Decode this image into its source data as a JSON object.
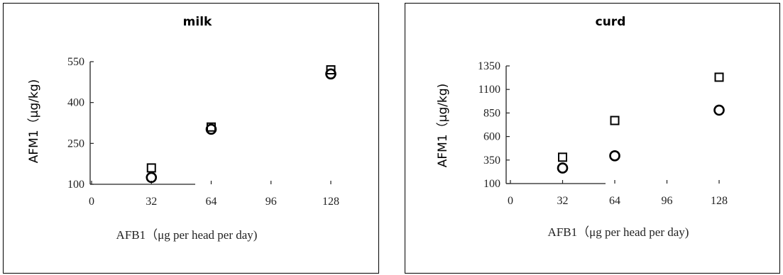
{
  "chart_data": [
    {
      "type": "scatter",
      "title": "milk",
      "xlabel": "AFB1（μg per head per day)",
      "ylabel": "AFM1（μg/kg)",
      "xlim": [
        0,
        145
      ],
      "ylim": [
        100,
        550
      ],
      "xticks": [
        0,
        32,
        64,
        96,
        128
      ],
      "yticks": [
        100,
        250,
        400,
        550
      ],
      "grid": false,
      "colors": {
        "marker": "#000000",
        "axis": "#222222"
      },
      "series": [
        {
          "marker": "square",
          "points": [
            [
              32,
              160
            ],
            [
              64,
              310
            ],
            [
              128,
              520
            ]
          ]
        },
        {
          "marker": "circle",
          "points": [
            [
              32,
              125
            ],
            [
              64,
              302
            ],
            [
              128,
              505
            ]
          ]
        }
      ]
    },
    {
      "type": "scatter",
      "title": "curd",
      "xlabel": "AFB1（μg per head per day)",
      "ylabel": "AFM1（μg/kg)",
      "xlim": [
        0,
        145
      ],
      "ylim": [
        100,
        1350
      ],
      "xticks": [
        0,
        32,
        64,
        96,
        128
      ],
      "yticks": [
        100,
        350,
        600,
        850,
        1100,
        1350
      ],
      "grid": false,
      "colors": {
        "marker": "#000000",
        "axis": "#222222"
      },
      "series": [
        {
          "marker": "square",
          "points": [
            [
              32,
              380
            ],
            [
              64,
              770
            ],
            [
              128,
              1230
            ]
          ]
        },
        {
          "marker": "circle",
          "points": [
            [
              32,
              265
            ],
            [
              64,
              395
            ],
            [
              128,
              880
            ]
          ]
        }
      ]
    }
  ]
}
